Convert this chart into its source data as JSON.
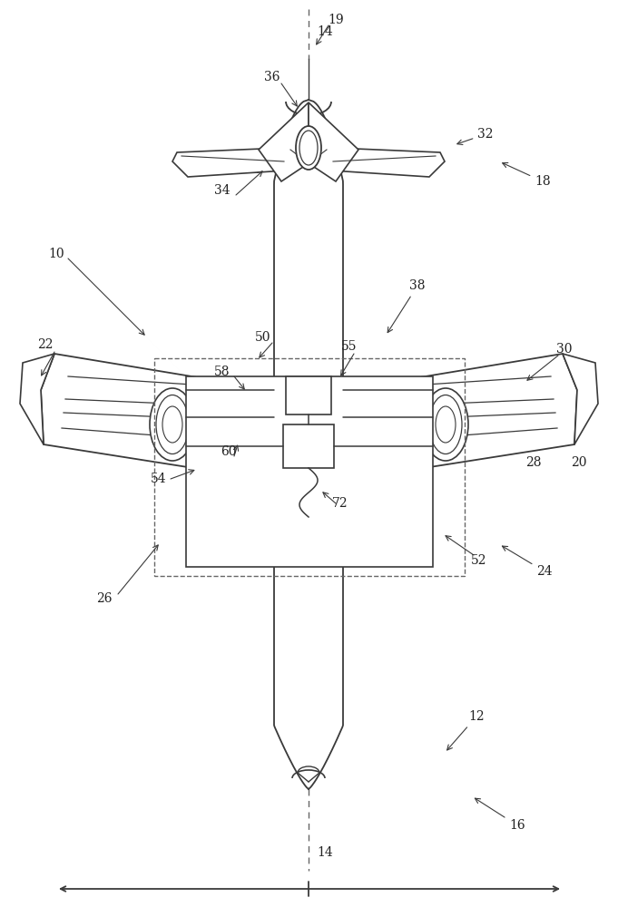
{
  "bg_color": "#ffffff",
  "line_color": "#3a3a3a",
  "dashed_color": "#666666",
  "label_color": "#222222",
  "figsize": [
    6.81,
    10.0
  ],
  "dpi": 100,
  "title_font": "DejaVu Serif",
  "label_fontsize": 10,
  "arrow_lw": 0.8
}
